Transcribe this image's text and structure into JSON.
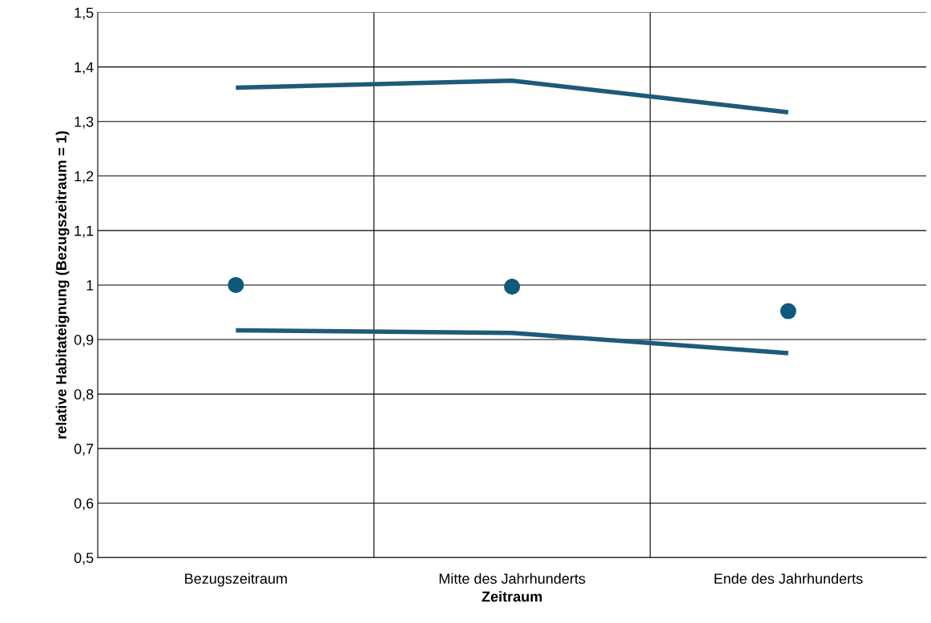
{
  "chart_data": {
    "type": "line",
    "xlabel": "Zeitraum",
    "ylabel": "relative Habitateignung (Bezugszeitraum = 1)",
    "categories": [
      "Bezugszeitraum",
      "Mitte des Jahrhunderts",
      "Ende des Jahrhunderts"
    ],
    "series": [
      {
        "color": "#1d5b7a",
        "values": [
          1.362,
          1.375,
          1.317
        ],
        "marker": "none"
      },
      {
        "color": "#1d5b7a",
        "values": [
          0.917,
          0.912,
          0.875
        ],
        "marker": "none"
      },
      {
        "type": "scatter",
        "color": "#0f5a7c",
        "values": [
          1.0,
          0.997,
          0.952
        ],
        "marker": "circle"
      }
    ],
    "ylim": [
      0.5,
      1.5
    ],
    "yticks": [
      {
        "value": 0.5,
        "label": "0,5"
      },
      {
        "value": 0.6,
        "label": "0,6"
      },
      {
        "value": 0.7,
        "label": "0,7"
      },
      {
        "value": 0.8,
        "label": "0,8"
      },
      {
        "value": 0.9,
        "label": "0,9"
      },
      1,
      {
        "value": 1.1,
        "label": "1,1"
      },
      {
        "value": 1.2,
        "label": "1,2"
      },
      {
        "value": 1.3,
        "label": "1,3"
      },
      {
        "value": 1.4,
        "label": "1,4"
      },
      {
        "value": 1.5,
        "label": "1,5"
      }
    ],
    "grid": true
  }
}
